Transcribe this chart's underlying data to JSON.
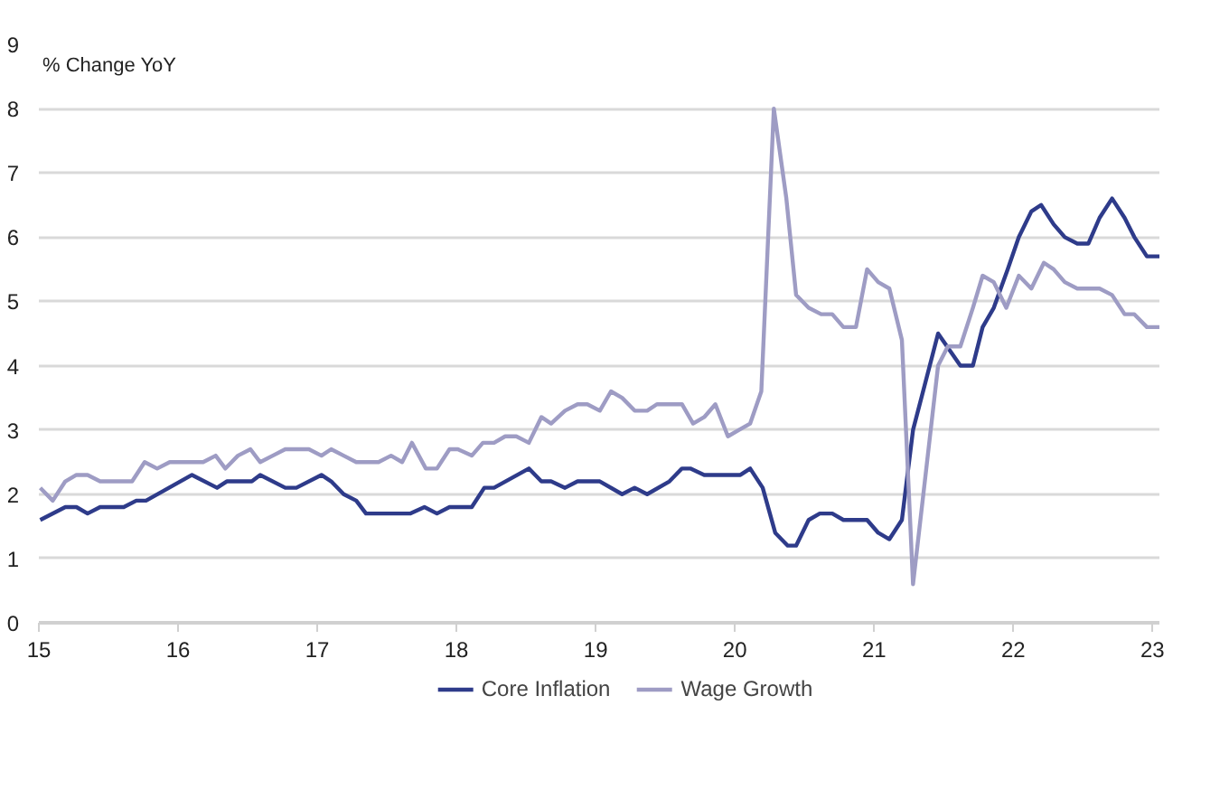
{
  "chart_data": {
    "type": "line",
    "ylabel": "% Change YoY",
    "xlim": [
      15,
      23.05
    ],
    "xticks": [
      15,
      16,
      17,
      18,
      19,
      20,
      21,
      22,
      23
    ],
    "ylim": [
      0,
      9
    ],
    "yticks": [
      0,
      1,
      2,
      3,
      4,
      5,
      6,
      7,
      8,
      9
    ],
    "grid": "y",
    "legend": "bottom",
    "marker": "none",
    "line_style": "solid",
    "series": [
      {
        "name": "Core Inflation",
        "color": "#2e3b8a",
        "x": [
          15.01,
          15.19,
          15.27,
          15.35,
          15.44,
          15.61,
          15.7,
          15.77,
          16.1,
          16.28,
          16.35,
          16.53,
          16.59,
          16.77,
          16.85,
          17.03,
          17.1,
          17.19,
          17.28,
          17.35,
          17.67,
          17.77,
          17.86,
          17.95,
          18.11,
          18.2,
          18.27,
          18.52,
          18.61,
          18.68,
          18.78,
          18.87,
          19.03,
          19.19,
          19.28,
          19.37,
          19.53,
          19.62,
          19.68,
          19.78,
          20.04,
          20.11,
          20.2,
          20.29,
          20.38,
          20.44,
          20.53,
          20.61,
          20.7,
          20.78,
          20.95,
          21.03,
          21.11,
          21.2,
          21.28,
          21.46,
          21.62,
          21.71,
          21.78,
          21.86,
          21.96,
          22.04,
          22.13,
          22.2,
          22.29,
          22.37,
          22.46,
          22.54,
          22.62,
          22.71,
          22.8,
          22.87,
          22.96,
          23.05
        ],
        "values": [
          1.6,
          1.8,
          1.8,
          1.7,
          1.8,
          1.8,
          1.9,
          1.9,
          2.3,
          2.1,
          2.2,
          2.2,
          2.3,
          2.1,
          2.1,
          2.3,
          2.2,
          2.0,
          1.9,
          1.7,
          1.7,
          1.8,
          1.7,
          1.8,
          1.8,
          2.1,
          2.1,
          2.4,
          2.2,
          2.2,
          2.1,
          2.2,
          2.2,
          2.0,
          2.1,
          2.0,
          2.2,
          2.4,
          2.4,
          2.3,
          2.3,
          2.4,
          2.1,
          1.4,
          1.2,
          1.2,
          1.6,
          1.7,
          1.7,
          1.6,
          1.6,
          1.4,
          1.3,
          1.6,
          3.0,
          4.5,
          4.0,
          4.0,
          4.6,
          4.9,
          5.5,
          6.0,
          6.4,
          6.5,
          6.2,
          6.0,
          5.9,
          5.9,
          6.3,
          6.6,
          6.3,
          6.0,
          5.7,
          5.7
        ]
      },
      {
        "name": "Wage Growth",
        "color": "#9e9cc4",
        "x": [
          15.01,
          15.1,
          15.19,
          15.27,
          15.35,
          15.44,
          15.67,
          15.76,
          15.85,
          15.94,
          16.18,
          16.27,
          16.34,
          16.43,
          16.52,
          16.59,
          16.68,
          16.77,
          16.94,
          17.03,
          17.1,
          17.19,
          17.28,
          17.44,
          17.53,
          17.61,
          17.68,
          17.78,
          17.86,
          17.95,
          18.01,
          18.11,
          18.19,
          18.27,
          18.35,
          18.43,
          18.52,
          18.61,
          18.68,
          18.78,
          18.87,
          18.94,
          19.03,
          19.11,
          19.19,
          19.28,
          19.37,
          19.44,
          19.62,
          19.7,
          19.78,
          19.86,
          19.95,
          20.03,
          20.11,
          20.19,
          20.28,
          20.37,
          20.44,
          20.53,
          20.62,
          20.7,
          20.78,
          20.87,
          20.95,
          21.03,
          21.11,
          21.2,
          21.28,
          21.46,
          21.53,
          21.62,
          21.71,
          21.78,
          21.86,
          21.95,
          22.04,
          22.13,
          22.22,
          22.29,
          22.37,
          22.46,
          22.62,
          22.71,
          22.8,
          22.87,
          22.96,
          23.05
        ],
        "values": [
          2.1,
          1.9,
          2.2,
          2.3,
          2.3,
          2.2,
          2.2,
          2.5,
          2.4,
          2.5,
          2.5,
          2.6,
          2.4,
          2.6,
          2.7,
          2.5,
          2.6,
          2.7,
          2.7,
          2.6,
          2.7,
          2.6,
          2.5,
          2.5,
          2.6,
          2.5,
          2.8,
          2.4,
          2.4,
          2.7,
          2.7,
          2.6,
          2.8,
          2.8,
          2.9,
          2.9,
          2.8,
          3.2,
          3.1,
          3.3,
          3.4,
          3.4,
          3.3,
          3.6,
          3.5,
          3.3,
          3.3,
          3.4,
          3.4,
          3.1,
          3.2,
          3.4,
          2.9,
          3.0,
          3.1,
          3.6,
          8.0,
          6.6,
          5.1,
          4.9,
          4.8,
          4.8,
          4.6,
          4.6,
          5.5,
          5.3,
          5.2,
          4.4,
          0.6,
          4.0,
          4.3,
          4.3,
          4.9,
          5.4,
          5.3,
          4.9,
          5.4,
          5.2,
          5.6,
          5.5,
          5.3,
          5.2,
          5.2,
          5.1,
          4.8,
          4.8,
          4.6,
          4.6
        ]
      }
    ]
  }
}
